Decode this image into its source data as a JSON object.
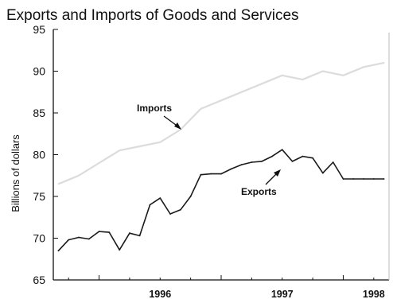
{
  "chart_data": {
    "type": "line",
    "title": "Exports and Imports of Goods and Services",
    "xlabel": "",
    "ylabel": "Billions of dollars",
    "ylim": [
      65,
      95
    ],
    "yticks": [
      65,
      70,
      75,
      80,
      85,
      90,
      95
    ],
    "xlim": [
      1995.625,
      1998.375
    ],
    "xtick_labels": [
      {
        "label": "1996",
        "x": 1996.5
      },
      {
        "label": "1997",
        "x": 1997.5
      },
      {
        "label": "1998",
        "x": 1998.25
      }
    ],
    "grid": false,
    "legend": "none",
    "annotations": [
      {
        "text": "Imports",
        "series": "Imports"
      },
      {
        "text": "Exports",
        "series": "Exports"
      }
    ],
    "series": [
      {
        "name": "Exports",
        "color": "#1a1a1a",
        "x": [
          1995.667,
          1995.75,
          1995.833,
          1995.917,
          1996.0,
          1996.083,
          1996.167,
          1996.25,
          1996.333,
          1996.417,
          1996.5,
          1996.583,
          1996.667,
          1996.75,
          1996.833,
          1996.917,
          1997.0,
          1997.083,
          1997.167,
          1997.25,
          1997.333,
          1997.417,
          1997.5,
          1997.583,
          1997.667,
          1997.75,
          1997.833,
          1997.917,
          1998.0,
          1998.083,
          1998.167,
          1998.25,
          1998.333
        ],
        "values": [
          68.5,
          69.8,
          70.1,
          69.9,
          70.8,
          70.7,
          68.6,
          70.6,
          70.3,
          74.0,
          74.8,
          72.9,
          73.4,
          75.0,
          77.6,
          77.7,
          77.7,
          78.3,
          78.8,
          79.1,
          79.2,
          79.8,
          80.6,
          79.2,
          79.8,
          79.6,
          77.8,
          79.1,
          77.1,
          77.1,
          77.1,
          77.1,
          77.1
        ]
      },
      {
        "name": "Imports",
        "color": "#dcdcdc",
        "x": [
          1995.667,
          1995.833,
          1996.0,
          1996.167,
          1996.333,
          1996.5,
          1996.667,
          1996.833,
          1997.0,
          1997.167,
          1997.333,
          1997.5,
          1997.667,
          1997.833,
          1998.0,
          1998.167,
          1998.333
        ],
        "values": [
          76.5,
          77.5,
          79.0,
          80.5,
          81.0,
          81.5,
          83.0,
          85.5,
          86.5,
          87.5,
          88.5,
          89.5,
          89.0,
          90.0,
          89.5,
          90.5,
          91.0
        ]
      }
    ]
  }
}
